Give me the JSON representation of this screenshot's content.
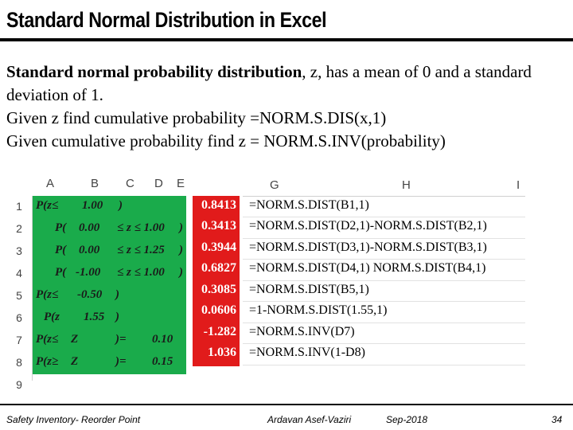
{
  "title": "Standard Normal Distribution in Excel",
  "body": {
    "line1_bold": "Standard normal probability distribution",
    "line1_rest": ", z,  has a mean of 0 and a standard deviation of 1.",
    "line2": "Given z find cumulative probability =NORM.S.DIS(x,1)",
    "line3": "Given cumulative probability find z = NORM.S.INV(probability)"
  },
  "sheet_left": {
    "col_headers": [
      "A",
      "B",
      "C",
      "D",
      "E"
    ],
    "row_headers": [
      "1",
      "2",
      "3",
      "4",
      "5",
      "6",
      "7",
      "8",
      "9"
    ],
    "rows": [
      [
        "P(z≤",
        "1.00",
        ")",
        "",
        ""
      ],
      [
        "P(",
        "0.00",
        "≤ z ≤ 1.00",
        ")",
        ""
      ],
      [
        "P(",
        "0.00",
        "≤ z ≤ 1.25",
        ")",
        ""
      ],
      [
        "P(",
        "-1.00",
        "≤ z ≤ 1.00",
        ")",
        ""
      ],
      [
        "P(z≤",
        "-0.50",
        ")",
        "",
        ""
      ],
      [
        "P(z",
        "1.55",
        ")",
        "",
        ""
      ],
      [
        "P(z≤",
        "Z",
        ")=",
        "0.10",
        ""
      ],
      [
        "P(z≥",
        "Z",
        ")=",
        "0.15",
        ""
      ]
    ]
  },
  "results": [
    "0.8413",
    "0.3413",
    "0.3944",
    "0.6827",
    "0.3085",
    "0.0606",
    "-1.282",
    "1.036"
  ],
  "sheet_right": {
    "col_headers": [
      "G",
      "H",
      "I"
    ],
    "formulas": [
      "=NORM.S.DIST(B1,1)",
      "=NORM.S.DIST(D2,1)-NORM.S.DIST(B2,1)",
      "=NORM.S.DIST(D3,1)-NORM.S.DIST(B3,1)",
      "=NORM.S.DIST(D4,1) NORM.S.DIST(B4,1)",
      "=NORM.S.DIST(B5,1)",
      "=1-NORM.S.DIST(1.55,1)",
      "=NORM.S.INV(D7)",
      "=NORM.S.INV(1-D8)"
    ]
  },
  "footer": {
    "left": "Safety Inventory- Reorder Point",
    "author": "Ardavan Asef-Vaziri",
    "date": "Sep-2018",
    "page": "34"
  }
}
